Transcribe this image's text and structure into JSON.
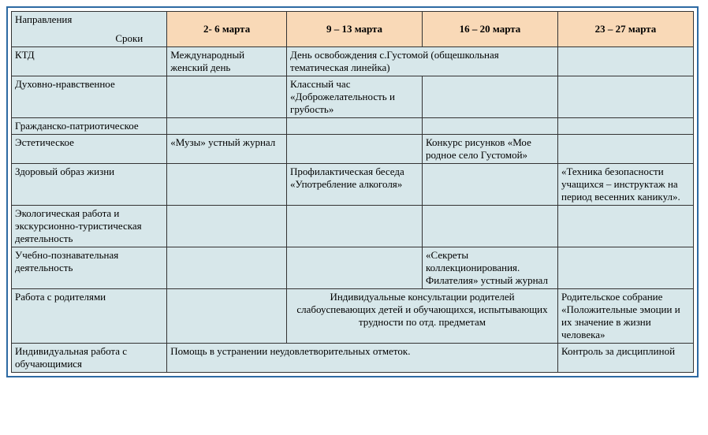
{
  "header": {
    "corner_top": "Направления",
    "corner_bot": "Сроки",
    "weeks": [
      "2- 6 марта",
      "9 – 13 марта",
      "16 – 20 марта",
      "23 – 27 марта"
    ]
  },
  "rows": {
    "r1": {
      "label": "КТД",
      "c1": "Международный женский день",
      "merged": "День освобождения с.Густомой (общешкольная тематическая линейка)",
      "c4": ""
    },
    "r2": {
      "label": "Духовно-нравственное",
      "c1": "",
      "c2": "Классный час «Доброжелательность и грубость»",
      "c3": "",
      "c4": ""
    },
    "r3": {
      "label": "Гражданско-патриотическое",
      "c1": "",
      "c2": "",
      "c3": "",
      "c4": ""
    },
    "r4": {
      "label": "Эстетическое",
      "c1": "«Музы» устный журнал",
      "c2": "",
      "c3": "Конкурс рисунков «Мое родное село Густомой»",
      "c4": ""
    },
    "r5": {
      "label": "Здоровый образ жизни",
      "c1": "",
      "c2": "Профилактическая беседа «Употребление алкоголя»",
      "c3": "",
      "c4": "«Техника безопасности учащихся – инструктаж на период весенних каникул»."
    },
    "r6": {
      "label": "Экологическая работа и экскурсионно-туристическая деятельность",
      "c1": "",
      "c2": "",
      "c3": "",
      "c4": ""
    },
    "r7": {
      "label": "Учебно-познавательная деятельность",
      "c1": "",
      "c2": "",
      "c3": "«Секреты коллекционирования. Филателия» устный журнал",
      "c4": ""
    },
    "r8": {
      "label": "Работа с родителями",
      "c1": "",
      "merged": "Индивидуальные консультации родителей слабоуспевающих детей и обучающихся, испытывающих трудности по отд. предметам",
      "c4": "Родительское собрание «Положительные эмоции и их значение в жизни человека»"
    },
    "r9": {
      "label": "Индивидуальная работа с обучающимися",
      "merged": "Помощь в устранении неудовлетворительных отметок.",
      "c4": "Контроль за дисциплиной"
    }
  }
}
